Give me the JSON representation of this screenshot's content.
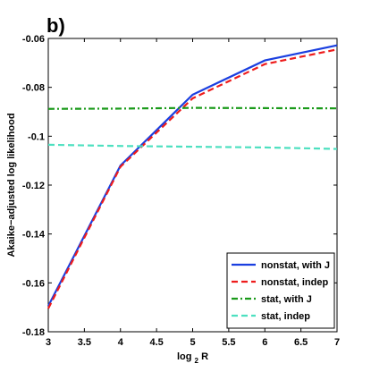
{
  "panel_label": "b)",
  "chart_data": {
    "type": "line",
    "xlabel": "log",
    "xlabel_sub": "2",
    "xlabel_suffix": " R",
    "ylabel": "Akaike−adjusted log likelihood",
    "xlim": [
      3,
      7
    ],
    "ylim": [
      -0.18,
      -0.06
    ],
    "xticks": [
      3,
      3.5,
      4,
      4.5,
      5,
      5.5,
      6,
      6.5,
      7
    ],
    "xtick_labels": [
      "3",
      "3.5",
      "4",
      "4.5",
      "5",
      "5.5",
      "6",
      "6.5",
      "7"
    ],
    "yticks": [
      -0.18,
      -0.16,
      -0.14,
      -0.12,
      -0.1,
      -0.08,
      -0.06
    ],
    "ytick_labels": [
      "-0.18",
      "-0.16",
      "-0.14",
      "-0.12",
      "-0.1",
      "-0.08",
      "-0.06"
    ],
    "grid": false,
    "legend_position": "bottom-right",
    "series": [
      {
        "name": "nonstat, with J",
        "color": "#1a3fe0",
        "style": "solid",
        "x": [
          3,
          4,
          5,
          6,
          7
        ],
        "y": [
          -0.1695,
          -0.112,
          -0.083,
          -0.069,
          -0.0628
        ]
      },
      {
        "name": "nonstat, indep",
        "color": "#ee1c1c",
        "style": "dashed",
        "x": [
          3,
          4,
          5,
          6,
          7
        ],
        "y": [
          -0.1705,
          -0.1125,
          -0.0845,
          -0.0705,
          -0.0645
        ]
      },
      {
        "name": "stat, with J",
        "color": "#1a9a1a",
        "style": "dashdot",
        "x": [
          3,
          4,
          5,
          6,
          7
        ],
        "y": [
          -0.0888,
          -0.0887,
          -0.0884,
          -0.0885,
          -0.0886
        ]
      },
      {
        "name": "stat, indep",
        "color": "#4de0c0",
        "style": "dashed",
        "x": [
          3,
          4,
          5,
          6,
          7
        ],
        "y": [
          -0.1035,
          -0.104,
          -0.1043,
          -0.1046,
          -0.1052
        ]
      }
    ]
  }
}
